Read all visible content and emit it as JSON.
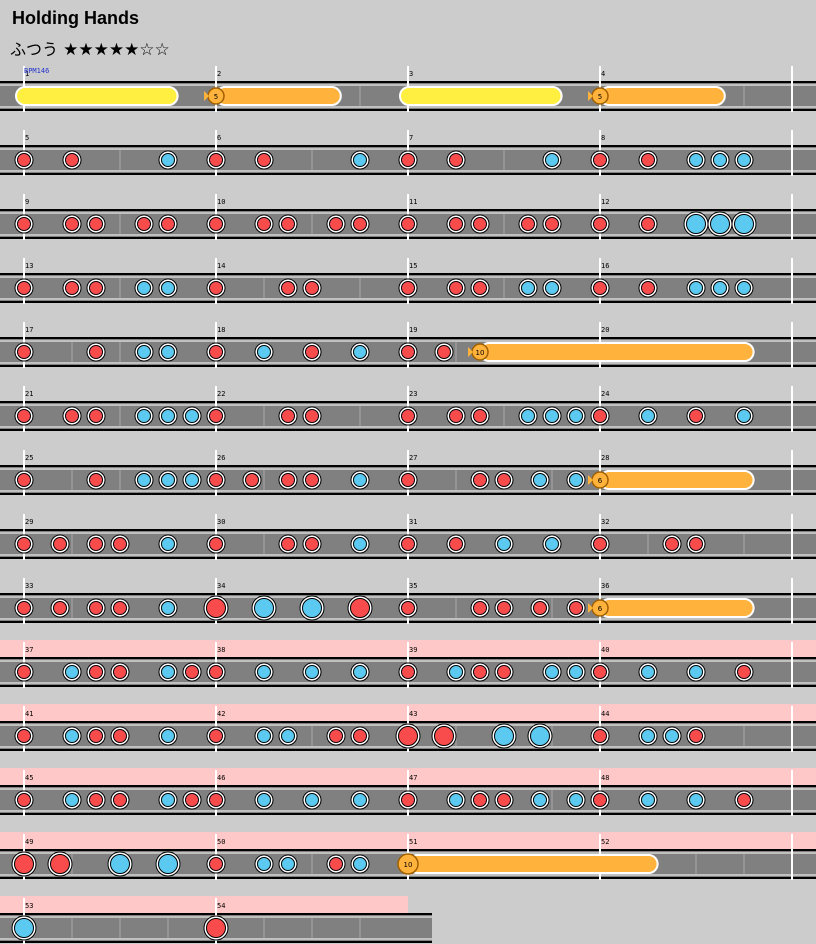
{
  "song": {
    "title": "Holding Hands",
    "difficulty": "ふつう",
    "stars": "★★★★★☆☆"
  },
  "bpm_label": "BPM146",
  "colors": {
    "bg": "#cccccc",
    "lane": "#808080",
    "red": "#f84c4c",
    "blue": "#5ccaf0",
    "yellow": "#ffef40",
    "orange": "#ffb23c",
    "gogo": "#ffc8c8"
  },
  "rows": [
    {
      "measures": [
        1,
        2,
        3,
        4
      ],
      "gogo": false,
      "rolls": [
        {
          "type": "yellow",
          "s": 0,
          "e": 0.8
        },
        {
          "type": "balloon",
          "s": 1.0,
          "e": 1.65,
          "count": "5"
        },
        {
          "type": "yellow",
          "s": 2.0,
          "e": 2.8
        },
        {
          "type": "balloon",
          "s": 3.0,
          "e": 3.65,
          "count": "5"
        }
      ],
      "notes": []
    },
    {
      "measures": [
        5,
        6,
        7,
        8
      ],
      "gogo": false,
      "rolls": [],
      "notes": [
        {
          "b": 0,
          "t": "d"
        },
        {
          "b": 0.25,
          "t": "d"
        },
        {
          "b": 0.75,
          "t": "k"
        },
        {
          "b": 1,
          "t": "d"
        },
        {
          "b": 1.25,
          "t": "d"
        },
        {
          "b": 1.75,
          "t": "k"
        },
        {
          "b": 2,
          "t": "d"
        },
        {
          "b": 2.25,
          "t": "d"
        },
        {
          "b": 2.75,
          "t": "k"
        },
        {
          "b": 3,
          "t": "d"
        },
        {
          "b": 3.25,
          "t": "d"
        },
        {
          "b": 3.5,
          "t": "k"
        },
        {
          "b": 3.625,
          "t": "k"
        },
        {
          "b": 3.75,
          "t": "k"
        }
      ]
    },
    {
      "measures": [
        9,
        10,
        11,
        12
      ],
      "gogo": false,
      "rolls": [],
      "notes": [
        {
          "b": 0,
          "t": "d"
        },
        {
          "b": 0.25,
          "t": "d"
        },
        {
          "b": 0.375,
          "t": "d"
        },
        {
          "b": 0.625,
          "t": "d"
        },
        {
          "b": 0.75,
          "t": "d"
        },
        {
          "b": 1,
          "t": "d"
        },
        {
          "b": 1.25,
          "t": "d"
        },
        {
          "b": 1.375,
          "t": "d"
        },
        {
          "b": 1.625,
          "t": "d"
        },
        {
          "b": 1.75,
          "t": "d"
        },
        {
          "b": 2,
          "t": "d"
        },
        {
          "b": 2.25,
          "t": "d"
        },
        {
          "b": 2.375,
          "t": "d"
        },
        {
          "b": 2.625,
          "t": "d"
        },
        {
          "b": 2.75,
          "t": "d"
        },
        {
          "b": 3,
          "t": "d"
        },
        {
          "b": 3.25,
          "t": "d"
        },
        {
          "b": 3.5,
          "t": "K"
        },
        {
          "b": 3.625,
          "t": "K"
        },
        {
          "b": 3.75,
          "t": "K"
        }
      ]
    },
    {
      "measures": [
        13,
        14,
        15,
        16
      ],
      "gogo": false,
      "rolls": [],
      "notes": [
        {
          "b": 0,
          "t": "d"
        },
        {
          "b": 0.25,
          "t": "d"
        },
        {
          "b": 0.375,
          "t": "d"
        },
        {
          "b": 0.625,
          "t": "k"
        },
        {
          "b": 0.75,
          "t": "k"
        },
        {
          "b": 1,
          "t": "d"
        },
        {
          "b": 1.375,
          "t": "d"
        },
        {
          "b": 1.5,
          "t": "d"
        },
        {
          "b": 2,
          "t": "d"
        },
        {
          "b": 2.25,
          "t": "d"
        },
        {
          "b": 2.375,
          "t": "d"
        },
        {
          "b": 2.625,
          "t": "k"
        },
        {
          "b": 2.75,
          "t": "k"
        },
        {
          "b": 3,
          "t": "d"
        },
        {
          "b": 3.25,
          "t": "d"
        },
        {
          "b": 3.5,
          "t": "k"
        },
        {
          "b": 3.625,
          "t": "k"
        },
        {
          "b": 3.75,
          "t": "k"
        }
      ]
    },
    {
      "measures": [
        17,
        18,
        19,
        20
      ],
      "gogo": false,
      "rolls": [
        {
          "type": "balloon",
          "s": 2.375,
          "e": 3.8,
          "count": "10"
        }
      ],
      "notes": [
        {
          "b": 0,
          "t": "d"
        },
        {
          "b": 0.375,
          "t": "d"
        },
        {
          "b": 0.625,
          "t": "k"
        },
        {
          "b": 0.75,
          "t": "k"
        },
        {
          "b": 1,
          "t": "d"
        },
        {
          "b": 1.25,
          "t": "k"
        },
        {
          "b": 1.5,
          "t": "d"
        },
        {
          "b": 1.75,
          "t": "k"
        },
        {
          "b": 2,
          "t": "d"
        },
        {
          "b": 2.1875,
          "t": "d"
        }
      ]
    },
    {
      "measures": [
        21,
        22,
        23,
        24
      ],
      "gogo": false,
      "rolls": [],
      "notes": [
        {
          "b": 0,
          "t": "d"
        },
        {
          "b": 0.25,
          "t": "d"
        },
        {
          "b": 0.375,
          "t": "d"
        },
        {
          "b": 0.625,
          "t": "k"
        },
        {
          "b": 0.75,
          "t": "k"
        },
        {
          "b": 0.875,
          "t": "k"
        },
        {
          "b": 1,
          "t": "d"
        },
        {
          "b": 1.375,
          "t": "d"
        },
        {
          "b": 1.5,
          "t": "d"
        },
        {
          "b": 2,
          "t": "d"
        },
        {
          "b": 2.25,
          "t": "d"
        },
        {
          "b": 2.375,
          "t": "d"
        },
        {
          "b": 2.625,
          "t": "k"
        },
        {
          "b": 2.75,
          "t": "k"
        },
        {
          "b": 2.875,
          "t": "k"
        },
        {
          "b": 3,
          "t": "d"
        },
        {
          "b": 3.25,
          "t": "k"
        },
        {
          "b": 3.5,
          "t": "d"
        },
        {
          "b": 3.75,
          "t": "k"
        }
      ]
    },
    {
      "measures": [
        25,
        26,
        27,
        28
      ],
      "gogo": false,
      "rolls": [
        {
          "type": "balloon",
          "s": 3.0,
          "e": 3.8,
          "count": "6"
        }
      ],
      "notes": [
        {
          "b": 0,
          "t": "d"
        },
        {
          "b": 0.375,
          "t": "d"
        },
        {
          "b": 0.625,
          "t": "k"
        },
        {
          "b": 0.75,
          "t": "k"
        },
        {
          "b": 0.875,
          "t": "k"
        },
        {
          "b": 1,
          "t": "d"
        },
        {
          "b": 1.1875,
          "t": "d"
        },
        {
          "b": 1.375,
          "t": "d"
        },
        {
          "b": 1.5,
          "t": "d"
        },
        {
          "b": 1.75,
          "t": "k"
        },
        {
          "b": 2,
          "t": "d"
        },
        {
          "b": 2.375,
          "t": "d"
        },
        {
          "b": 2.5,
          "t": "d"
        },
        {
          "b": 2.6875,
          "t": "k"
        },
        {
          "b": 2.875,
          "t": "k"
        }
      ]
    },
    {
      "measures": [
        29,
        30,
        31,
        32
      ],
      "gogo": false,
      "rolls": [],
      "notes": [
        {
          "b": 0,
          "t": "d"
        },
        {
          "b": 0.1875,
          "t": "d"
        },
        {
          "b": 0.375,
          "t": "d"
        },
        {
          "b": 0.5,
          "t": "d"
        },
        {
          "b": 0.75,
          "t": "k"
        },
        {
          "b": 1,
          "t": "d"
        },
        {
          "b": 1.375,
          "t": "d"
        },
        {
          "b": 1.5,
          "t": "d"
        },
        {
          "b": 1.75,
          "t": "k"
        },
        {
          "b": 2,
          "t": "d"
        },
        {
          "b": 2.25,
          "t": "d"
        },
        {
          "b": 2.5,
          "t": "k"
        },
        {
          "b": 2.75,
          "t": "k"
        },
        {
          "b": 3,
          "t": "d"
        },
        {
          "b": 3.375,
          "t": "d"
        },
        {
          "b": 3.5,
          "t": "d"
        }
      ]
    },
    {
      "measures": [
        33,
        34,
        35,
        36
      ],
      "gogo": false,
      "rolls": [
        {
          "type": "balloon",
          "s": 3.0,
          "e": 3.8,
          "count": "6"
        }
      ],
      "notes": [
        {
          "b": 0,
          "t": "d"
        },
        {
          "b": 0.1875,
          "t": "d"
        },
        {
          "b": 0.375,
          "t": "d"
        },
        {
          "b": 0.5,
          "t": "d"
        },
        {
          "b": 0.75,
          "t": "k"
        },
        {
          "b": 1,
          "t": "D"
        },
        {
          "b": 1.25,
          "t": "K"
        },
        {
          "b": 1.5,
          "t": "K"
        },
        {
          "b": 1.75,
          "t": "D"
        },
        {
          "b": 2,
          "t": "d"
        },
        {
          "b": 2.375,
          "t": "d"
        },
        {
          "b": 2.5,
          "t": "d"
        },
        {
          "b": 2.6875,
          "t": "d"
        },
        {
          "b": 2.875,
          "t": "d"
        }
      ]
    },
    {
      "measures": [
        37,
        38,
        39,
        40
      ],
      "gogo": true,
      "rolls": [],
      "notes": [
        {
          "b": 0,
          "t": "d"
        },
        {
          "b": 0.25,
          "t": "k"
        },
        {
          "b": 0.375,
          "t": "d"
        },
        {
          "b": 0.5,
          "t": "d"
        },
        {
          "b": 0.75,
          "t": "k"
        },
        {
          "b": 0.875,
          "t": "d"
        },
        {
          "b": 1,
          "t": "d"
        },
        {
          "b": 1.25,
          "t": "k"
        },
        {
          "b": 1.5,
          "t": "k"
        },
        {
          "b": 1.75,
          "t": "k"
        },
        {
          "b": 2,
          "t": "d"
        },
        {
          "b": 2.25,
          "t": "k"
        },
        {
          "b": 2.375,
          "t": "d"
        },
        {
          "b": 2.5,
          "t": "d"
        },
        {
          "b": 2.75,
          "t": "k"
        },
        {
          "b": 2.875,
          "t": "k"
        },
        {
          "b": 3,
          "t": "d"
        },
        {
          "b": 3.25,
          "t": "k"
        },
        {
          "b": 3.5,
          "t": "k"
        },
        {
          "b": 3.75,
          "t": "d"
        }
      ]
    },
    {
      "measures": [
        41,
        42,
        43,
        44
      ],
      "gogo": true,
      "rolls": [],
      "notes": [
        {
          "b": 0,
          "t": "d"
        },
        {
          "b": 0.25,
          "t": "k"
        },
        {
          "b": 0.375,
          "t": "d"
        },
        {
          "b": 0.5,
          "t": "d"
        },
        {
          "b": 0.75,
          "t": "k"
        },
        {
          "b": 1,
          "t": "d"
        },
        {
          "b": 1.25,
          "t": "k"
        },
        {
          "b": 1.375,
          "t": "k"
        },
        {
          "b": 1.625,
          "t": "d"
        },
        {
          "b": 1.75,
          "t": "d"
        },
        {
          "b": 2,
          "t": "D"
        },
        {
          "b": 2.1875,
          "t": "D"
        },
        {
          "b": 2.5,
          "t": "K"
        },
        {
          "b": 2.6875,
          "t": "K"
        },
        {
          "b": 3,
          "t": "d"
        },
        {
          "b": 3.25,
          "t": "k"
        },
        {
          "b": 3.375,
          "t": "k"
        },
        {
          "b": 3.5,
          "t": "d"
        }
      ]
    },
    {
      "measures": [
        45,
        46,
        47,
        48
      ],
      "gogo": true,
      "rolls": [],
      "notes": [
        {
          "b": 0,
          "t": "d"
        },
        {
          "b": 0.25,
          "t": "k"
        },
        {
          "b": 0.375,
          "t": "d"
        },
        {
          "b": 0.5,
          "t": "d"
        },
        {
          "b": 0.75,
          "t": "k"
        },
        {
          "b": 0.875,
          "t": "d"
        },
        {
          "b": 1,
          "t": "d"
        },
        {
          "b": 1.25,
          "t": "k"
        },
        {
          "b": 1.5,
          "t": "k"
        },
        {
          "b": 1.75,
          "t": "k"
        },
        {
          "b": 2,
          "t": "d"
        },
        {
          "b": 2.25,
          "t": "k"
        },
        {
          "b": 2.375,
          "t": "d"
        },
        {
          "b": 2.5,
          "t": "d"
        },
        {
          "b": 2.6875,
          "t": "k"
        },
        {
          "b": 2.875,
          "t": "k"
        },
        {
          "b": 3,
          "t": "d"
        },
        {
          "b": 3.25,
          "t": "k"
        },
        {
          "b": 3.5,
          "t": "k"
        },
        {
          "b": 3.75,
          "t": "d"
        }
      ]
    },
    {
      "measures": [
        49,
        50,
        51,
        52
      ],
      "gogo": true,
      "rolls": [
        {
          "type": "bigroll",
          "s": 2.0,
          "e": 3.3,
          "count": "10"
        }
      ],
      "notes": [
        {
          "b": 0,
          "t": "D"
        },
        {
          "b": 0.1875,
          "t": "D"
        },
        {
          "b": 0.5,
          "t": "K"
        },
        {
          "b": 0.75,
          "t": "K"
        },
        {
          "b": 1,
          "t": "d"
        },
        {
          "b": 1.25,
          "t": "k"
        },
        {
          "b": 1.375,
          "t": "k"
        },
        {
          "b": 1.625,
          "t": "d"
        },
        {
          "b": 1.75,
          "t": "k"
        }
      ]
    },
    {
      "measures": [
        53,
        54
      ],
      "gogo": true,
      "rolls": [],
      "notes": [
        {
          "b": 0,
          "t": "K"
        },
        {
          "b": 1,
          "t": "D"
        }
      ]
    }
  ]
}
